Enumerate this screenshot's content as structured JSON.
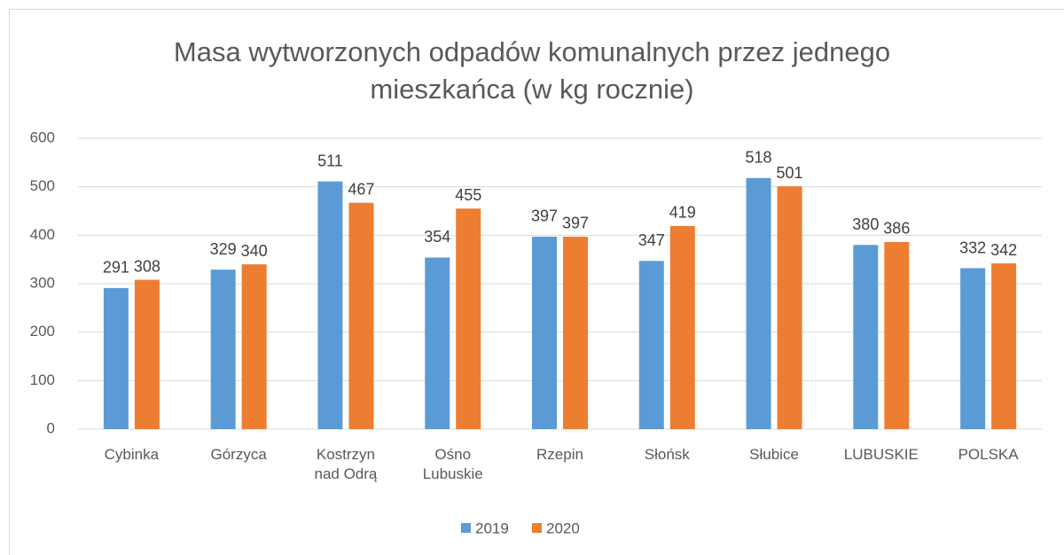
{
  "chart_data": {
    "type": "bar",
    "title": "Masa wytworzonych odpadów komunalnych przez jednego mieszkańca (w kg rocznie)",
    "categories": [
      "Cybinka",
      "Górzyca",
      "Kostrzyn nad Odrą",
      "Ośno Lubuskie",
      "Rzepin",
      "Słońsk",
      "Słubice",
      "LUBUSKIE",
      "POLSKA"
    ],
    "series": [
      {
        "name": "2019",
        "color": "#5b9bd5",
        "values": [
          291,
          329,
          511,
          354,
          397,
          347,
          518,
          380,
          332
        ]
      },
      {
        "name": "2020",
        "color": "#ed7d31",
        "values": [
          308,
          340,
          467,
          455,
          397,
          419,
          501,
          386,
          342
        ]
      }
    ],
    "ylim": [
      0,
      600
    ],
    "yticks": [
      0,
      100,
      200,
      300,
      400,
      500,
      600
    ],
    "grid": true,
    "legend": "bottom"
  }
}
